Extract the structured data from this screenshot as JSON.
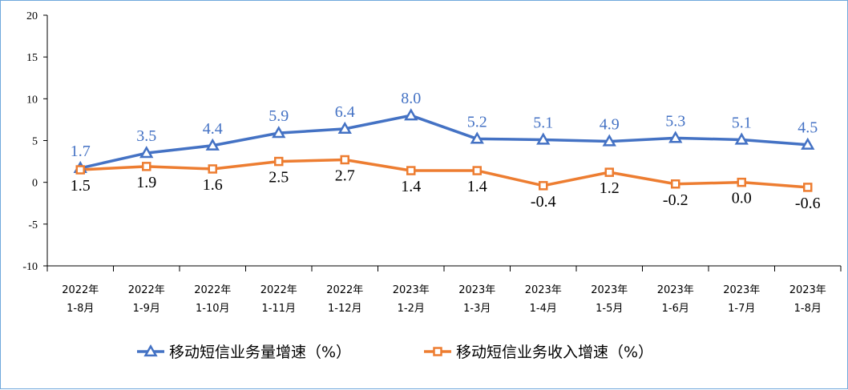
{
  "chart_data": {
    "type": "line",
    "categories": [
      [
        "2022年",
        "1-8月"
      ],
      [
        "2022年",
        "1-9月"
      ],
      [
        "2022年",
        "1-10月"
      ],
      [
        "2022年",
        "1-11月"
      ],
      [
        "2022年",
        "1-12月"
      ],
      [
        "2023年",
        "1-2月"
      ],
      [
        "2023年",
        "1-3月"
      ],
      [
        "2023年",
        "1-4月"
      ],
      [
        "2023年",
        "1-5月"
      ],
      [
        "2023年",
        "1-6月"
      ],
      [
        "2023年",
        "1-7月"
      ],
      [
        "2023年",
        "1-8月"
      ]
    ],
    "series": [
      {
        "name": "移动短信业务量增速（%）",
        "color": "#4472c4",
        "marker": "triangle",
        "values": [
          1.7,
          3.5,
          4.4,
          5.9,
          6.4,
          8.0,
          5.2,
          5.1,
          4.9,
          5.3,
          5.1,
          4.5
        ],
        "labels": [
          "1.7",
          "3.5",
          "4.4",
          "5.9",
          "6.4",
          "8.0",
          "5.2",
          "5.1",
          "4.9",
          "5.3",
          "5.1",
          "4.5"
        ]
      },
      {
        "name": "移动短信业务收入增速（%）",
        "color": "#ed7d31",
        "marker": "square",
        "values": [
          1.5,
          1.9,
          1.6,
          2.5,
          2.7,
          1.4,
          1.4,
          -0.4,
          1.2,
          -0.2,
          0.0,
          -0.6
        ],
        "labels": [
          "1.5",
          "1.9",
          "1.6",
          "2.5",
          "2.7",
          "1.4",
          "1.4",
          "-0.4",
          "1.2",
          "-0.2",
          "0.0",
          "-0.6"
        ]
      }
    ],
    "yticks": [
      "20",
      "15",
      "10",
      "5",
      "0",
      "-5",
      "-10"
    ],
    "ylim": [
      -10,
      20
    ],
    "grid": false,
    "legend_position": "bottom",
    "title": "",
    "xlabel": "",
    "ylabel": ""
  }
}
